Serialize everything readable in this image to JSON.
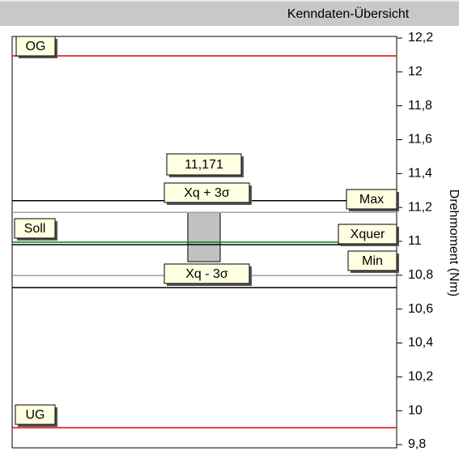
{
  "header": {
    "title": "Kenndaten-Übersicht"
  },
  "chart_data": {
    "type": "control",
    "y_label": "Drehmoment (Nm)",
    "ylim": [
      9.8,
      12.2
    ],
    "yticks": [
      {
        "value": 12.2,
        "label": "12,2"
      },
      12,
      {
        "value": 11.8,
        "label": "11,8"
      },
      {
        "value": 11.6,
        "label": "11,6"
      },
      {
        "value": 11.4,
        "label": "11,4"
      },
      {
        "value": 11.2,
        "label": "11,2"
      },
      11,
      {
        "value": 10.8,
        "label": "10,8"
      },
      {
        "value": 10.6,
        "label": "10,6"
      },
      {
        "value": 10.4,
        "label": "10,4"
      },
      {
        "value": 10.2,
        "label": "10,2"
      },
      10,
      {
        "value": 9.8,
        "label": "9,8"
      }
    ],
    "series": [
      {
        "name": "OG",
        "color": "#e00000",
        "values": [
          12.095
        ]
      },
      {
        "name": "UG",
        "color": "#e00000",
        "values": [
          9.9
        ]
      },
      {
        "name": "Max",
        "color": "#000000",
        "values": [
          11.24
        ]
      },
      {
        "name": "Min",
        "color": "#000000",
        "values": [
          10.727
        ]
      },
      {
        "name": "Soll",
        "color": "#000000",
        "values": [
          10.98
        ]
      },
      {
        "name": "Xquer",
        "color": "#008000",
        "values": [
          10.995
        ]
      },
      {
        "name": "Xq + 3σ",
        "color": "#a0a0a0",
        "values": [
          11.171
        ],
        "value_labels": [
          "11,171"
        ]
      },
      {
        "name": "Xq - 3σ",
        "color": "#a0a0a0",
        "values": [
          10.798
        ]
      }
    ],
    "box": {
      "low": 10.88,
      "color": "#c0c0c0"
    }
  }
}
